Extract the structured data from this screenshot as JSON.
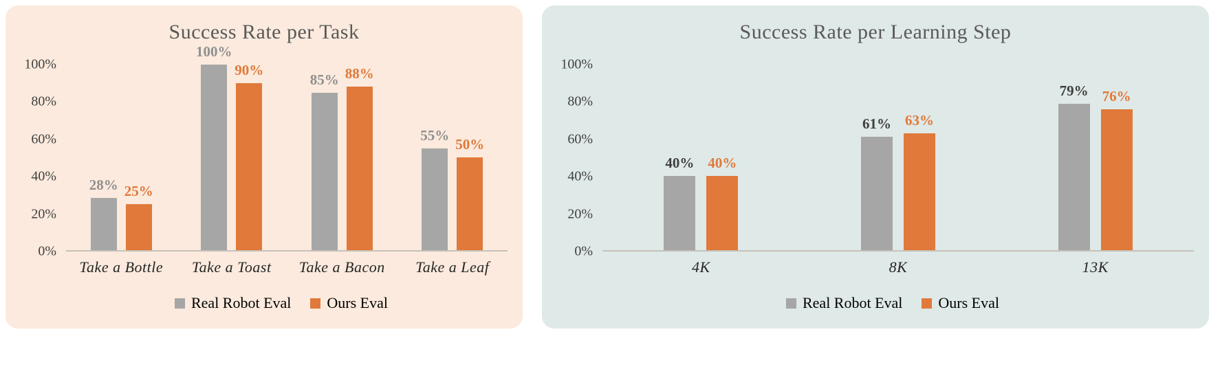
{
  "page": {
    "background": "#ffffff"
  },
  "chart_data": [
    {
      "id": "success-rate-per-task",
      "type": "bar",
      "title": "Success Rate per Task",
      "panel_color": "#fbeadd",
      "categories": [
        "Take a Bottle",
        "Take a Toast",
        "Take a Bacon",
        "Take a Leaf"
      ],
      "series": [
        {
          "name": "Real Robot Eval",
          "color": "#a6a6a6",
          "label_color": "#8f8f8f",
          "values": [
            28,
            100,
            85,
            55
          ]
        },
        {
          "name": "Ours Eval",
          "color": "#e0793a",
          "label_color": "#e0793a",
          "values": [
            25,
            90,
            88,
            50
          ]
        }
      ],
      "value_suffix": "%",
      "y_ticks": [
        "0%",
        "20%",
        "40%",
        "60%",
        "80%",
        "100%"
      ],
      "ylim": [
        0,
        100
      ],
      "xlabel": "",
      "ylabel": "",
      "grid": false,
      "legend_position": "bottom"
    },
    {
      "id": "success-rate-per-learning-step",
      "type": "bar",
      "title": "Success Rate per Learning Step",
      "panel_color": "#dfe9e7",
      "categories": [
        "4K",
        "8K",
        "13K"
      ],
      "series": [
        {
          "name": "Real Robot Eval",
          "color": "#a6a6a6",
          "label_color": "#3f3f3f",
          "values": [
            40,
            61,
            79
          ]
        },
        {
          "name": "Ours Eval",
          "color": "#e0793a",
          "label_color": "#e0793a",
          "values": [
            40,
            63,
            76
          ]
        }
      ],
      "value_suffix": "%",
      "y_ticks": [
        "0%",
        "20%",
        "40%",
        "60%",
        "80%",
        "100%"
      ],
      "ylim": [
        0,
        100
      ],
      "xlabel": "",
      "ylabel": "",
      "grid": false,
      "legend_position": "bottom"
    }
  ]
}
